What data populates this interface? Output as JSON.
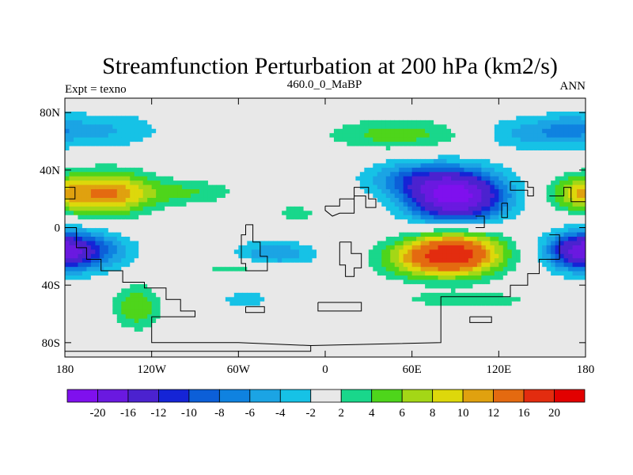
{
  "chart_data": {
    "type": "heatmap",
    "title": "Streamfunction Perturbation at 200 hPa (km2/s)",
    "left_label": "Expt = texno",
    "center_label": "460.0_0_MaBP",
    "right_label": "ANN",
    "x_axis": {
      "range": [
        -180,
        180
      ],
      "ticks": [
        -180,
        -120,
        -60,
        0,
        60,
        120,
        180
      ],
      "tick_labels": [
        "180",
        "120W",
        "60W",
        "0",
        "60E",
        "120E",
        "180"
      ]
    },
    "y_axis": {
      "range": [
        -90,
        90
      ],
      "ticks": [
        80,
        40,
        0,
        -40,
        -80
      ],
      "tick_labels": [
        "80N",
        "40N",
        "0",
        "40S",
        "80S"
      ]
    },
    "colorbar": {
      "labels": [
        "-20",
        "-16",
        "-12",
        "-10",
        "-8",
        "-6",
        "-4",
        "-2",
        "2",
        "4",
        "6",
        "8",
        "10",
        "12",
        "16",
        "20"
      ],
      "colors": [
        "#7f10ee",
        "#6a19e0",
        "#4b22cf",
        "#1524d6",
        "#0c5fd8",
        "#0f82e0",
        "#1ba4e4",
        "#16c2e6",
        "#e8e8e8",
        "#19d78b",
        "#4ed51b",
        "#a4d716",
        "#ddd80b",
        "#e0a10f",
        "#e46a10",
        "#e32c0f",
        "#e20000"
      ]
    },
    "field_centers": [
      {
        "lon": 90,
        "lat": 22,
        "value": -22,
        "sx": 33,
        "sy": 17
      },
      {
        "lon": 60,
        "lat": 35,
        "value": -6,
        "sx": 35,
        "sy": 12
      },
      {
        "lon": 90,
        "lat": -18,
        "value": 18,
        "sx": 32,
        "sy": 15
      },
      {
        "lon": 60,
        "lat": -22,
        "value": 5,
        "sx": 28,
        "sy": 13
      },
      {
        "lon": -150,
        "lat": 24,
        "value": 12,
        "sx": 30,
        "sy": 15
      },
      {
        "lon": -95,
        "lat": 25,
        "value": 4,
        "sx": 34,
        "sy": 9
      },
      {
        "lon": -20,
        "lat": 10,
        "value": 3,
        "sx": 16,
        "sy": 7
      },
      {
        "lon": 175,
        "lat": 24,
        "value": 7,
        "sx": 20,
        "sy": 12
      },
      {
        "lon": -170,
        "lat": -16,
        "value": -11,
        "sx": 32,
        "sy": 14
      },
      {
        "lon": -35,
        "lat": -18,
        "value": -6,
        "sx": 28,
        "sy": 9
      },
      {
        "lon": 175,
        "lat": -16,
        "value": -10,
        "sx": 20,
        "sy": 12
      },
      {
        "lon": -60,
        "lat": -28,
        "value": 3,
        "sx": 32,
        "sy": 6
      },
      {
        "lon": -130,
        "lat": -55,
        "value": 6,
        "sx": 16,
        "sy": 15
      },
      {
        "lon": -55,
        "lat": -50,
        "value": -3,
        "sx": 20,
        "sy": 8
      },
      {
        "lon": 50,
        "lat": 65,
        "value": 5,
        "sx": 48,
        "sy": 11
      },
      {
        "lon": -150,
        "lat": 68,
        "value": -4,
        "sx": 38,
        "sy": 13
      },
      {
        "lon": 145,
        "lat": 66,
        "value": -5,
        "sx": 38,
        "sy": 12
      },
      {
        "lon": 170,
        "lat": 70,
        "value": -3,
        "sx": 18,
        "sy": 10
      },
      {
        "lon": 100,
        "lat": -50,
        "value": 3,
        "sx": 60,
        "sy": 6
      },
      {
        "lon": 160,
        "lat": -50,
        "value": -3,
        "sx": 15,
        "sy": 10
      }
    ],
    "coastlines": [
      [
        [
          -180,
          28
        ],
        [
          -173,
          28
        ],
        [
          -173,
          20
        ],
        [
          -180,
          20
        ]
      ],
      [
        [
          -180,
          0
        ],
        [
          -172,
          0
        ],
        [
          -172,
          -14
        ],
        [
          -165,
          -14
        ],
        [
          -165,
          -22
        ],
        [
          -155,
          -22
        ],
        [
          -155,
          -30
        ],
        [
          -140,
          -30
        ],
        [
          -140,
          -38
        ],
        [
          -125,
          -38
        ],
        [
          -125,
          -42
        ],
        [
          -110,
          -42
        ],
        [
          -110,
          -50
        ],
        [
          -100,
          -50
        ],
        [
          -100,
          -58
        ],
        [
          -90,
          -58
        ],
        [
          -90,
          -62
        ],
        [
          -120,
          -62
        ],
        [
          -120,
          -80
        ],
        [
          -60,
          -80
        ],
        [
          -10,
          -82
        ],
        [
          -10,
          -86
        ],
        [
          -180,
          -86
        ]
      ],
      [
        [
          -55,
          2
        ],
        [
          -50,
          2
        ],
        [
          -50,
          -10
        ],
        [
          -45,
          -10
        ],
        [
          -45,
          -20
        ],
        [
          -40,
          -20
        ],
        [
          -40,
          -30
        ],
        [
          -55,
          -30
        ],
        [
          -55,
          -25
        ],
        [
          -58,
          -25
        ],
        [
          -58,
          -5
        ],
        [
          -55,
          -5
        ],
        [
          -55,
          2
        ]
      ],
      [
        [
          0,
          15
        ],
        [
          10,
          15
        ],
        [
          10,
          20
        ],
        [
          20,
          20
        ],
        [
          20,
          28
        ],
        [
          30,
          28
        ],
        [
          30,
          20
        ],
        [
          35,
          20
        ],
        [
          35,
          14
        ],
        [
          28,
          14
        ],
        [
          28,
          22
        ],
        [
          20,
          22
        ],
        [
          20,
          10
        ],
        [
          10,
          10
        ],
        [
          5,
          8
        ],
        [
          0,
          12
        ],
        [
          0,
          15
        ]
      ],
      [
        [
          10,
          -10
        ],
        [
          18,
          -10
        ],
        [
          18,
          -18
        ],
        [
          25,
          -18
        ],
        [
          25,
          -28
        ],
        [
          20,
          -28
        ],
        [
          20,
          -34
        ],
        [
          14,
          -34
        ],
        [
          14,
          -26
        ],
        [
          10,
          -26
        ],
        [
          10,
          -10
        ]
      ],
      [
        [
          -5,
          -52
        ],
        [
          25,
          -52
        ],
        [
          25,
          -58
        ],
        [
          -5,
          -58
        ],
        [
          -5,
          -52
        ]
      ],
      [
        [
          -55,
          -55
        ],
        [
          -42,
          -55
        ],
        [
          -42,
          -59
        ],
        [
          -55,
          -59
        ],
        [
          -55,
          -55
        ]
      ],
      [
        [
          128,
          32
        ],
        [
          140,
          32
        ],
        [
          140,
          28
        ],
        [
          144,
          28
        ],
        [
          144,
          22
        ],
        [
          140,
          22
        ],
        [
          140,
          26
        ],
        [
          128,
          26
        ],
        [
          128,
          32
        ]
      ],
      [
        [
          122,
          17
        ],
        [
          126,
          17
        ],
        [
          126,
          7
        ],
        [
          122,
          7
        ],
        [
          122,
          17
        ]
      ],
      [
        [
          104,
          0
        ],
        [
          110,
          0
        ],
        [
          110,
          8
        ],
        [
          104,
          8
        ]
      ],
      [
        [
          155,
          22
        ],
        [
          165,
          22
        ],
        [
          165,
          28
        ],
        [
          170,
          28
        ],
        [
          170,
          18
        ],
        [
          180,
          18
        ]
      ],
      [
        [
          155,
          -5
        ],
        [
          162,
          -5
        ],
        [
          162,
          -22
        ],
        [
          148,
          -22
        ],
        [
          148,
          -32
        ],
        [
          140,
          -32
        ],
        [
          140,
          -40
        ],
        [
          128,
          -40
        ],
        [
          128,
          -48
        ],
        [
          80,
          -48
        ],
        [
          80,
          -80
        ],
        [
          -10,
          -82
        ]
      ],
      [
        [
          100,
          -62
        ],
        [
          115,
          -62
        ],
        [
          115,
          -66
        ],
        [
          100,
          -66
        ],
        [
          100,
          -62
        ]
      ]
    ]
  }
}
